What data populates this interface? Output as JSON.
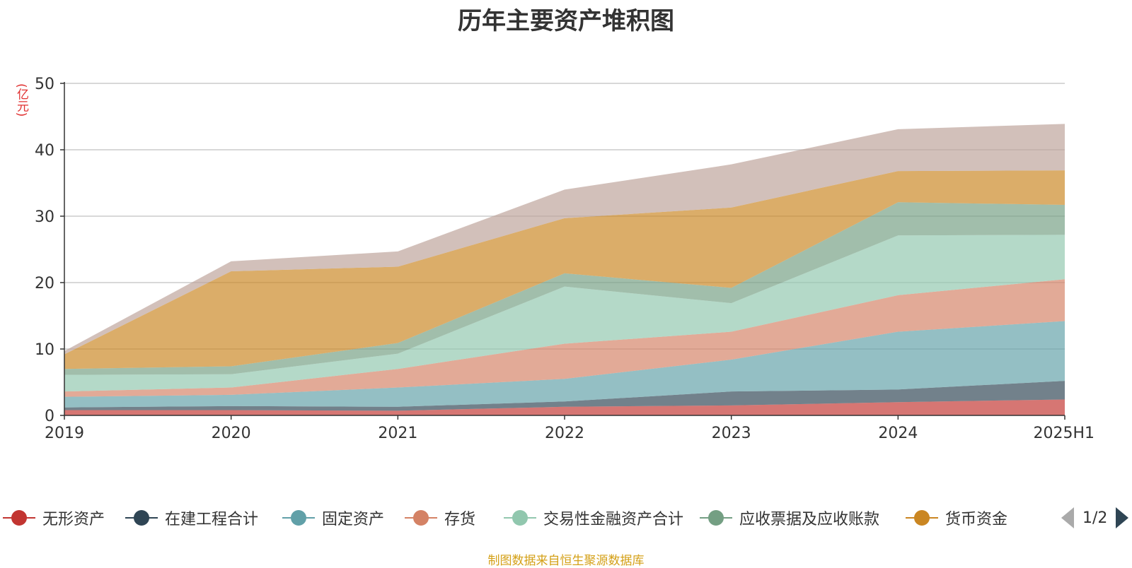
{
  "chart_data": {
    "type": "area",
    "stacked": true,
    "title": "历年主要资产堆积图",
    "ylabel": "(亿元)",
    "xlabel": "",
    "categories": [
      "2019",
      "2020",
      "2021",
      "2022",
      "2023",
      "2024",
      "2025H1"
    ],
    "ylim": [
      0,
      50
    ],
    "yticks": [
      0,
      10,
      20,
      30,
      40,
      50
    ],
    "grid": true,
    "legend_position": "bottom",
    "series": [
      {
        "name": "无形资产",
        "color": "#c23531",
        "values": [
          0.8,
          0.8,
          0.7,
          1.3,
          1.5,
          2.0,
          2.4
        ]
      },
      {
        "name": "在建工程合计",
        "color": "#2f4554",
        "values": [
          0.4,
          0.6,
          0.6,
          0.8,
          2.1,
          1.9,
          2.8
        ]
      },
      {
        "name": "固定资产",
        "color": "#61a0a8",
        "values": [
          1.6,
          1.7,
          2.9,
          3.4,
          4.8,
          8.7,
          9.0
        ]
      },
      {
        "name": "存货",
        "color": "#d48265",
        "values": [
          0.8,
          1.1,
          2.8,
          5.3,
          4.2,
          5.5,
          6.3
        ]
      },
      {
        "name": "交易性金融资产合计",
        "color": "#91c7ae",
        "values": [
          2.5,
          2.0,
          2.3,
          8.6,
          4.3,
          9.0,
          6.7
        ]
      },
      {
        "name": "应收票据及应收账款",
        "color": "#749f83",
        "values": [
          0.9,
          1.2,
          1.6,
          2.0,
          2.3,
          5.0,
          4.5
        ]
      },
      {
        "name": "货币资金",
        "color": "#ca8622",
        "values": [
          2.2,
          14.3,
          11.5,
          8.3,
          12.1,
          4.7,
          5.2
        ]
      },
      {
        "name": "",
        "color": "#bda29a",
        "values": [
          0.5,
          1.5,
          2.3,
          4.3,
          6.5,
          6.3,
          7.0
        ]
      }
    ]
  },
  "legend": {
    "page_indicator": "1/2"
  },
  "source_note": "制图数据来自恒生聚源数据库",
  "colors": {
    "title": "#333333",
    "axis_unit": "#e03030",
    "source_note": "#d4a017",
    "gridline": "#cccccc",
    "axis": "#333333"
  }
}
